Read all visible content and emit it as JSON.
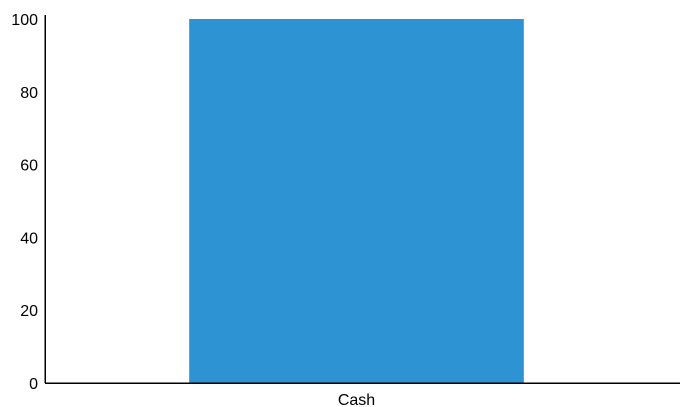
{
  "chart_data": {
    "type": "bar",
    "categories": [
      "Cash"
    ],
    "values": [
      100
    ],
    "ylim": [
      0,
      100
    ],
    "yticks": [
      "0",
      "20",
      "40",
      "60",
      "80",
      "100"
    ],
    "title": "",
    "xlabel": "",
    "ylabel": "",
    "grid": false,
    "colors": {
      "bar": "#2e93d2",
      "axis": "#000000",
      "text": "#000000"
    }
  }
}
